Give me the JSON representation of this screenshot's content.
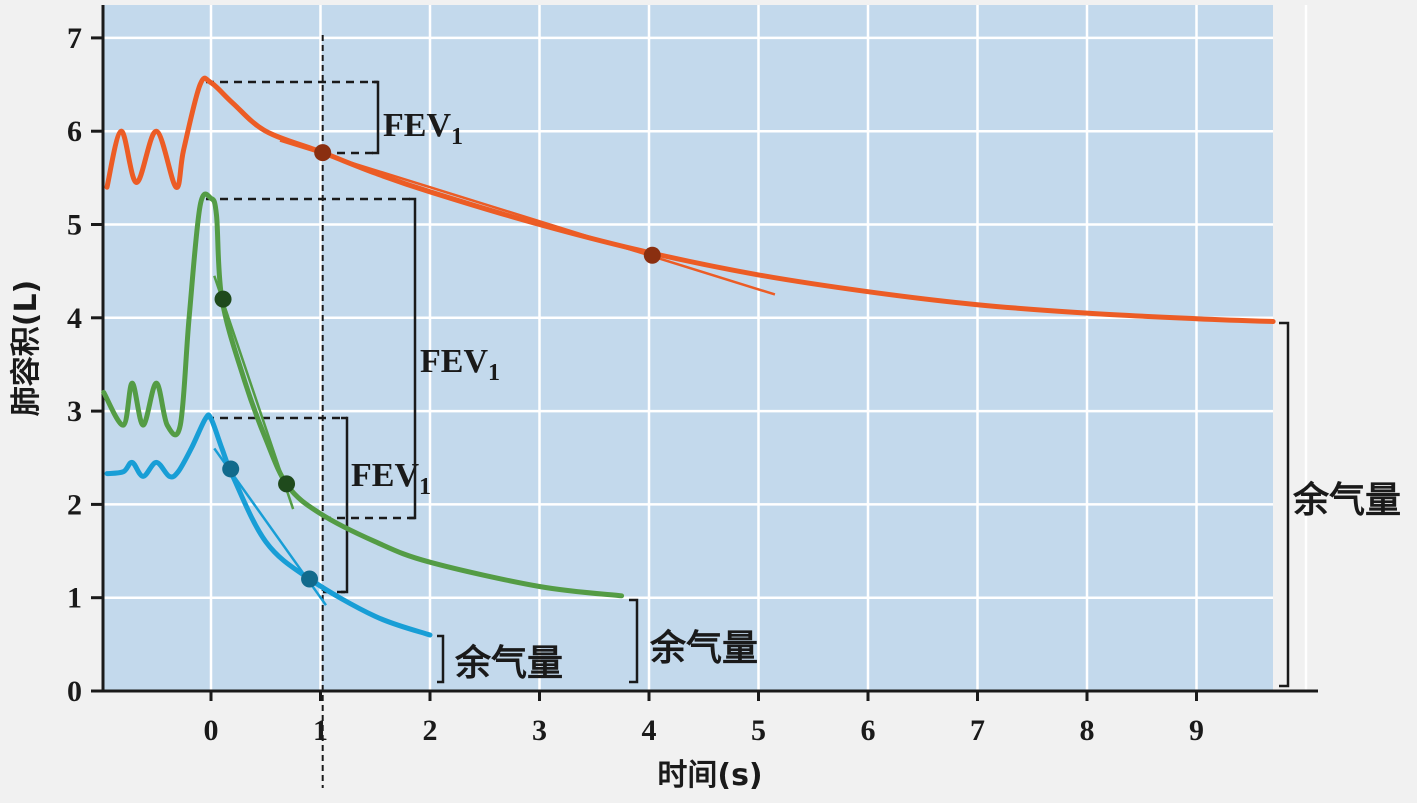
{
  "chart_data": {
    "type": "line",
    "xlabel": "时间(s)",
    "ylabel": "肺容积(L)",
    "xlim": [
      -0.98,
      10
    ],
    "ylim": [
      0,
      7.3
    ],
    "x_ticks": [
      "0",
      "1",
      "2",
      "3",
      "4",
      "5",
      "6",
      "7",
      "8",
      "9"
    ],
    "y_ticks": [
      "0",
      "1",
      "2",
      "3",
      "4",
      "5",
      "6",
      "7"
    ],
    "grid": true,
    "colors": {
      "background": "#c3d9ec",
      "grid": "#ffffff",
      "orange": "#ec5c25",
      "green": "#549c45",
      "blue": "#189ed6",
      "orange_marker": "#8a2f10",
      "green_marker": "#1f4a1c",
      "blue_marker": "#116a8c"
    },
    "series": [
      {
        "color_key": "orange",
        "points": [
          [
            -0.95,
            5.4
          ],
          [
            -0.82,
            6.0
          ],
          [
            -0.68,
            5.45
          ],
          [
            -0.5,
            6.0
          ],
          [
            -0.32,
            5.4
          ],
          [
            -0.25,
            5.8
          ],
          [
            -0.1,
            6.5
          ],
          [
            0,
            6.52
          ],
          [
            0.2,
            6.3
          ],
          [
            0.5,
            6.0
          ],
          [
            1.0,
            5.78
          ],
          [
            1.5,
            5.55
          ],
          [
            2.0,
            5.35
          ],
          [
            3.0,
            5.0
          ],
          [
            4.0,
            4.7
          ],
          [
            5.0,
            4.46
          ],
          [
            6.0,
            4.28
          ],
          [
            7.0,
            4.14
          ],
          [
            8.0,
            4.05
          ],
          [
            9.0,
            3.99
          ],
          [
            9.7,
            3.96
          ]
        ],
        "markers": [
          [
            1.02,
            5.77
          ],
          [
            4.03,
            4.67
          ]
        ],
        "tangent": [
          [
            0.63,
            5.9
          ],
          [
            5.15,
            4.25
          ]
        ]
      },
      {
        "color_key": "green",
        "points": [
          [
            -0.98,
            3.2
          ],
          [
            -0.8,
            2.85
          ],
          [
            -0.72,
            3.3
          ],
          [
            -0.62,
            2.85
          ],
          [
            -0.5,
            3.3
          ],
          [
            -0.4,
            2.85
          ],
          [
            -0.28,
            2.85
          ],
          [
            -0.2,
            4.0
          ],
          [
            -0.1,
            5.2
          ],
          [
            0,
            5.28
          ],
          [
            0.05,
            5.1
          ],
          [
            0.1,
            4.2
          ],
          [
            0.3,
            3.35
          ],
          [
            0.5,
            2.7
          ],
          [
            0.7,
            2.2
          ],
          [
            1.0,
            1.9
          ],
          [
            1.5,
            1.6
          ],
          [
            2.0,
            1.38
          ],
          [
            3.0,
            1.12
          ],
          [
            3.75,
            1.02
          ]
        ],
        "markers": [
          [
            0.11,
            4.2
          ],
          [
            0.69,
            2.22
          ]
        ],
        "tangent": [
          [
            0.03,
            4.45
          ],
          [
            0.75,
            1.95
          ]
        ]
      },
      {
        "color_key": "blue",
        "points": [
          [
            -0.95,
            2.33
          ],
          [
            -0.8,
            2.35
          ],
          [
            -0.72,
            2.45
          ],
          [
            -0.62,
            2.3
          ],
          [
            -0.5,
            2.45
          ],
          [
            -0.38,
            2.3
          ],
          [
            -0.3,
            2.35
          ],
          [
            -0.18,
            2.6
          ],
          [
            -0.05,
            2.92
          ],
          [
            0.0,
            2.92
          ],
          [
            0.1,
            2.6
          ],
          [
            0.2,
            2.3
          ],
          [
            0.5,
            1.6
          ],
          [
            0.9,
            1.2
          ],
          [
            1.5,
            0.8
          ],
          [
            2.0,
            0.6
          ]
        ],
        "markers": [
          [
            0.18,
            2.38
          ],
          [
            0.9,
            1.2
          ]
        ],
        "tangent": [
          [
            0.03,
            2.6
          ],
          [
            1.05,
            0.92
          ]
        ]
      }
    ],
    "vline_x": 1.02,
    "annotations": [
      {
        "text": "FEV",
        "subscript": "1"
      },
      {
        "text": "FEV",
        "subscript": "1"
      },
      {
        "text": "FEV",
        "subscript": "1"
      },
      {
        "text": "余气量"
      },
      {
        "text": "余气量"
      },
      {
        "text": "余气量"
      }
    ]
  }
}
